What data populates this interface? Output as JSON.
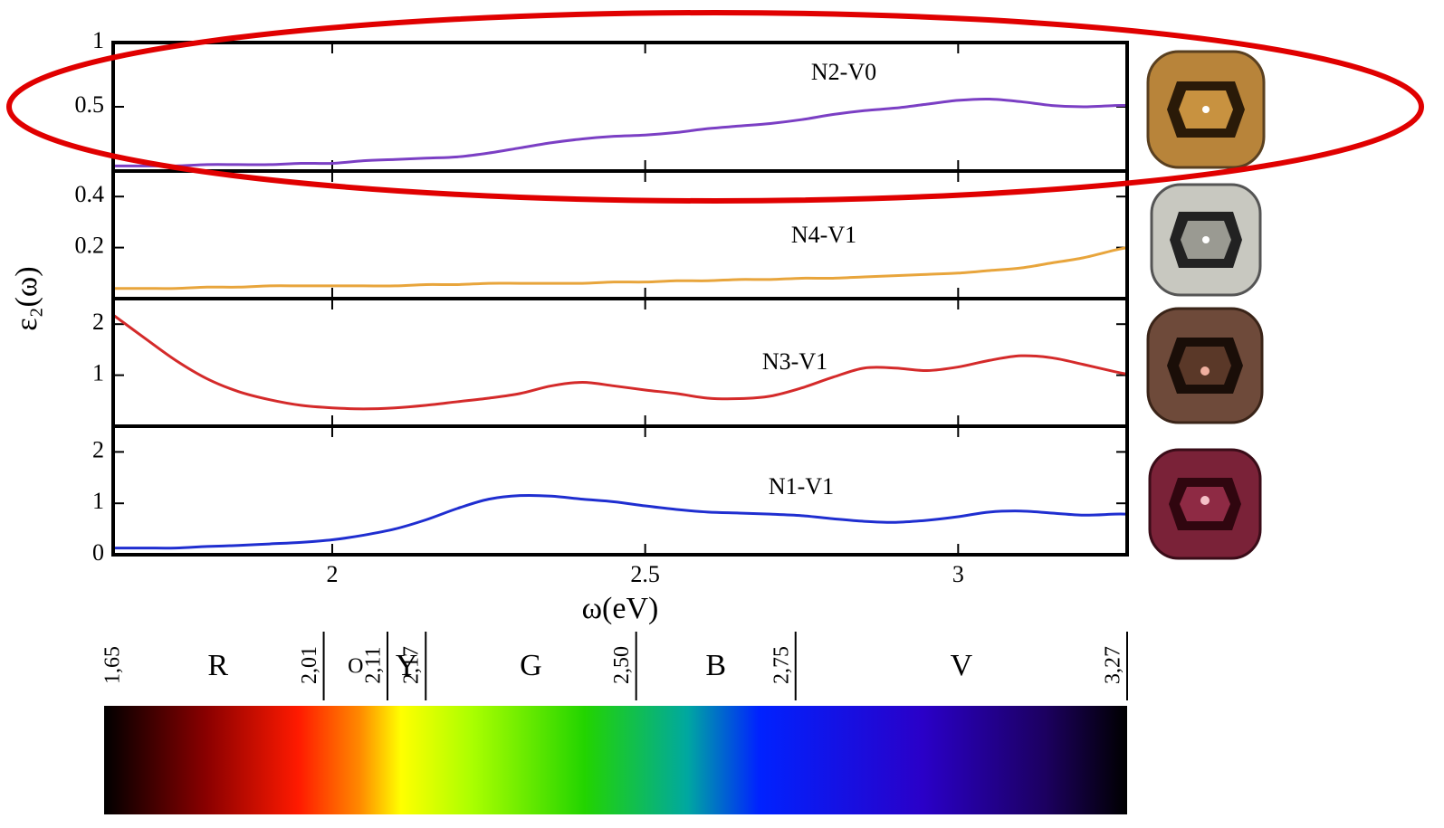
{
  "chart_data": [
    {
      "type": "line",
      "title": "N2-V0",
      "color": "#7b3fc4",
      "x": [
        1.65,
        1.7,
        1.75,
        1.8,
        1.85,
        1.9,
        1.95,
        2.0,
        2.05,
        2.1,
        2.15,
        2.2,
        2.25,
        2.3,
        2.35,
        2.4,
        2.45,
        2.5,
        2.55,
        2.6,
        2.65,
        2.7,
        2.75,
        2.8,
        2.85,
        2.9,
        2.95,
        3.0,
        3.05,
        3.1,
        3.15,
        3.2,
        3.25,
        3.27
      ],
      "values": [
        0.04,
        0.04,
        0.04,
        0.05,
        0.05,
        0.05,
        0.06,
        0.06,
        0.08,
        0.09,
        0.1,
        0.11,
        0.14,
        0.18,
        0.22,
        0.25,
        0.27,
        0.28,
        0.3,
        0.33,
        0.35,
        0.37,
        0.4,
        0.44,
        0.47,
        0.49,
        0.52,
        0.55,
        0.56,
        0.54,
        0.51,
        0.5,
        0.51,
        0.51
      ],
      "xlim": [
        1.65,
        3.27
      ],
      "ylim": [
        0,
        1
      ],
      "yticks": [
        0.5,
        1
      ]
    },
    {
      "type": "line",
      "title": "N4-V1",
      "color": "#e8a53c",
      "x": [
        1.65,
        1.7,
        1.75,
        1.8,
        1.85,
        1.9,
        1.95,
        2.0,
        2.05,
        2.1,
        2.15,
        2.2,
        2.25,
        2.3,
        2.35,
        2.4,
        2.45,
        2.5,
        2.55,
        2.6,
        2.65,
        2.7,
        2.75,
        2.8,
        2.85,
        2.9,
        2.95,
        3.0,
        3.05,
        3.1,
        3.15,
        3.2,
        3.25,
        3.27
      ],
      "values": [
        0.04,
        0.04,
        0.04,
        0.045,
        0.045,
        0.05,
        0.05,
        0.05,
        0.05,
        0.05,
        0.055,
        0.055,
        0.06,
        0.06,
        0.06,
        0.06,
        0.065,
        0.065,
        0.07,
        0.07,
        0.075,
        0.075,
        0.08,
        0.08,
        0.085,
        0.09,
        0.095,
        0.1,
        0.11,
        0.12,
        0.14,
        0.16,
        0.19,
        0.2
      ],
      "xlim": [
        1.65,
        3.27
      ],
      "ylim": [
        0,
        0.5
      ],
      "yticks": [
        0.2,
        0.4
      ]
    },
    {
      "type": "line",
      "title": "N3-V1",
      "color": "#d42a2a",
      "x": [
        1.65,
        1.7,
        1.75,
        1.8,
        1.85,
        1.9,
        1.95,
        2.0,
        2.05,
        2.1,
        2.15,
        2.2,
        2.25,
        2.3,
        2.35,
        2.4,
        2.45,
        2.5,
        2.55,
        2.6,
        2.65,
        2.7,
        2.75,
        2.8,
        2.85,
        2.9,
        2.95,
        3.0,
        3.05,
        3.1,
        3.15,
        3.2,
        3.25,
        3.27
      ],
      "values": [
        2.18,
        1.73,
        1.29,
        0.93,
        0.68,
        0.52,
        0.41,
        0.36,
        0.34,
        0.36,
        0.41,
        0.48,
        0.55,
        0.64,
        0.79,
        0.86,
        0.79,
        0.71,
        0.64,
        0.55,
        0.54,
        0.59,
        0.75,
        0.96,
        1.14,
        1.14,
        1.09,
        1.16,
        1.29,
        1.38,
        1.34,
        1.21,
        1.07,
        1.02
      ],
      "xlim": [
        1.65,
        3.27
      ],
      "ylim": [
        0,
        2.5
      ],
      "yticks": [
        1,
        2
      ]
    },
    {
      "type": "line",
      "title": "N1-V1",
      "color": "#1f2ed0",
      "x": [
        1.65,
        1.7,
        1.75,
        1.8,
        1.85,
        1.9,
        1.95,
        2.0,
        2.05,
        2.1,
        2.15,
        2.2,
        2.25,
        2.3,
        2.35,
        2.4,
        2.45,
        2.5,
        2.55,
        2.6,
        2.65,
        2.7,
        2.75,
        2.8,
        2.85,
        2.9,
        2.95,
        3.0,
        3.05,
        3.1,
        3.15,
        3.2,
        3.25,
        3.27
      ],
      "values": [
        0.13,
        0.13,
        0.13,
        0.16,
        0.18,
        0.21,
        0.24,
        0.29,
        0.38,
        0.5,
        0.68,
        0.9,
        1.08,
        1.15,
        1.14,
        1.08,
        1.03,
        0.95,
        0.88,
        0.83,
        0.81,
        0.79,
        0.76,
        0.7,
        0.65,
        0.63,
        0.67,
        0.74,
        0.83,
        0.85,
        0.81,
        0.77,
        0.79,
        0.79
      ],
      "xlim": [
        1.65,
        3.27
      ],
      "ylim": [
        0,
        2.5
      ],
      "yticks": [
        0,
        1,
        2
      ],
      "xticks": [
        2,
        2.5,
        3
      ],
      "xlabel": "ω(eV)"
    }
  ],
  "ylabel": "ε₂(ω)",
  "spectrum": {
    "boundaries": [
      {
        "value": 1.65,
        "label": "1,65"
      },
      {
        "value": 2.01,
        "label": "2,01"
      },
      {
        "value": 2.11,
        "label": "2,11"
      },
      {
        "value": 2.17,
        "label": "2,17"
      },
      {
        "value": 2.5,
        "label": "2,50"
      },
      {
        "value": 2.75,
        "label": "2,75"
      },
      {
        "value": 3.27,
        "label": "3,27"
      }
    ],
    "bands": [
      "R",
      "O",
      "Y",
      "G",
      "B",
      "V"
    ]
  }
}
